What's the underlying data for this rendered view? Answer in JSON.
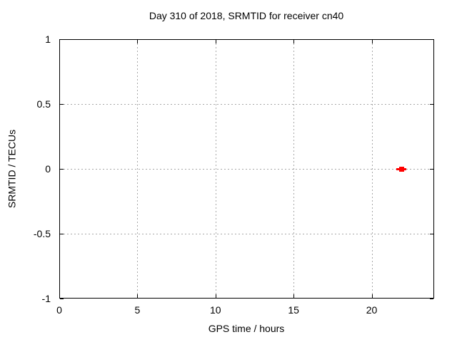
{
  "chart_data": {
    "type": "scatter",
    "title": "Day 310 of 2018, SRMTID for receiver cn40",
    "xlabel": "GPS time / hours",
    "ylabel": "SRMTID / TECUs",
    "xlim": [
      0,
      24
    ],
    "ylim": [
      -1,
      1
    ],
    "xticks": [
      0,
      5,
      10,
      15,
      20
    ],
    "xtick_labels": [
      "0",
      "5",
      "10",
      "15",
      "20"
    ],
    "yticks": [
      -1,
      -0.5,
      0,
      0.5,
      1
    ],
    "ytick_labels": [
      "-1",
      "-0.5",
      "0",
      "0.5",
      "1"
    ],
    "grid": "dotted",
    "grid_color": "#a7a7a7",
    "axis_color": "#000000",
    "background_color": "#ffffff",
    "legend": "none",
    "series": [
      {
        "name": "SRMTID",
        "marker": "filled-square-with-x-errorbar",
        "color": "#ff0000",
        "points": [
          {
            "x": 21.9,
            "y": 0.0,
            "xerr": 0.33
          }
        ]
      }
    ]
  }
}
